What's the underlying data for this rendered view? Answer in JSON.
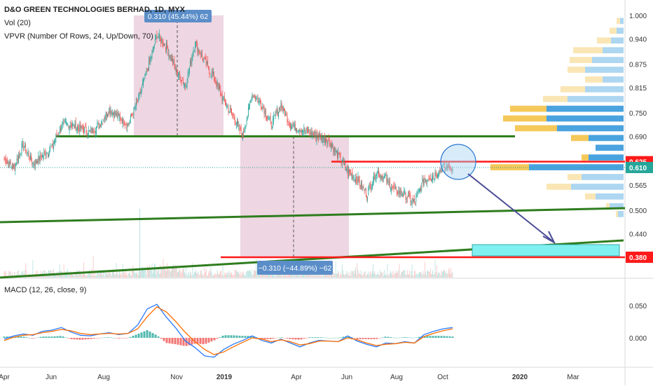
{
  "header": {
    "title": "D&O GREEN TECHNOLOGIES BERHAD, 1D, MYX",
    "line2": "Vol (20)",
    "line3": "VPVR (Number Of Rows, 24, Up/Down, 70)"
  },
  "macd_label": "MACD (12, 26, close, 9)",
  "annotations": {
    "range_up": "0.310 (45.44%) 62",
    "range_down": "−0.310 (−44.89%) −62"
  },
  "colors": {
    "up": "#26a69a",
    "down": "#ef5350",
    "trendline": "#2e7d1e",
    "hline": "#ff1a1a",
    "range_fill": "#e8c8d8",
    "target_box": "#80f0f0",
    "arrow": "#4b4c96",
    "vp_up": "#4aa3df",
    "vp_down": "#f5c85a",
    "macd_line": "#2979ff",
    "signal_line": "#ff6d00",
    "label_box": "#5b8ec9"
  },
  "chart_data": [
    {
      "type": "candlestick",
      "title": "D&O GREEN TECHNOLOGIES BERHAD, 1D, MYX",
      "x_ticks": [
        "Apr",
        "Jun",
        "Aug",
        "Nov",
        "2019",
        "Apr",
        "Jun",
        "Aug",
        "Oct",
        "2020",
        "Mar"
      ],
      "y_ticks": [
        "1.000",
        "0.940",
        "0.875",
        "0.815",
        "0.750",
        "0.690",
        "0.625",
        "0.565",
        "0.500",
        "0.440"
      ],
      "ylim": [
        0.38,
        1.0
      ],
      "price_tags": [
        {
          "value": "0.625",
          "color": "#ff1a1a"
        },
        {
          "value": "0.610",
          "color": "#26a69a"
        },
        {
          "value": "0.380",
          "color": "#ff1a1a"
        }
      ],
      "close_series": [
        0.63,
        0.61,
        0.67,
        0.62,
        0.64,
        0.66,
        0.72,
        0.72,
        0.71,
        0.7,
        0.72,
        0.76,
        0.74,
        0.72,
        0.78,
        0.86,
        0.95,
        0.92,
        0.86,
        0.82,
        0.93,
        0.88,
        0.84,
        0.78,
        0.74,
        0.69,
        0.8,
        0.77,
        0.72,
        0.77,
        0.72,
        0.71,
        0.7,
        0.69,
        0.68,
        0.64,
        0.6,
        0.58,
        0.54,
        0.6,
        0.58,
        0.55,
        0.54,
        0.52,
        0.58,
        0.59,
        0.61,
        0.61
      ],
      "volume_profile": [
        {
          "price": 0.985,
          "up": 5,
          "down": 5
        },
        {
          "price": 0.96,
          "up": 10,
          "down": 10
        },
        {
          "price": 0.935,
          "up": 18,
          "down": 20
        },
        {
          "price": 0.91,
          "up": 30,
          "down": 42
        },
        {
          "price": 0.885,
          "up": 45,
          "down": 32
        },
        {
          "price": 0.86,
          "up": 55,
          "down": 25
        },
        {
          "price": 0.835,
          "up": 30,
          "down": 25
        },
        {
          "price": 0.81,
          "up": 55,
          "down": 35
        },
        {
          "price": 0.785,
          "up": 80,
          "down": 35
        },
        {
          "price": 0.76,
          "up": 110,
          "down": 52
        },
        {
          "price": 0.735,
          "up": 110,
          "down": 62
        },
        {
          "price": 0.71,
          "up": 95,
          "down": 60
        },
        {
          "price": 0.685,
          "up": 50,
          "down": 25
        },
        {
          "price": 0.66,
          "up": 40,
          "down": 0
        },
        {
          "price": 0.635,
          "up": 50,
          "down": 10
        },
        {
          "price": 0.61,
          "up": 135,
          "down": 55
        },
        {
          "price": 0.585,
          "up": 60,
          "down": 20
        },
        {
          "price": 0.56,
          "up": 75,
          "down": 35
        },
        {
          "price": 0.535,
          "up": 40,
          "down": 15
        },
        {
          "price": 0.51,
          "up": 20,
          "down": 5
        },
        {
          "price": 0.49,
          "up": 8,
          "down": 3
        }
      ]
    },
    {
      "type": "line",
      "title": "MACD (12, 26, close, 9)",
      "y_ticks": [
        "0.050",
        "0.000"
      ],
      "ylim": [
        -0.045,
        0.07
      ],
      "series": [
        {
          "name": "MACD",
          "values": [
            -0.002,
            0.003,
            0.006,
            0.004,
            0.01,
            0.012,
            0.016,
            0.009,
            0.004,
            0.003,
            0.006,
            0.008,
            0.005,
            0.007,
            0.02,
            0.045,
            0.052,
            0.032,
            0.015,
            -0.005,
            -0.015,
            -0.028,
            -0.03,
            -0.018,
            -0.01,
            -0.004,
            0.003,
            -0.004,
            -0.008,
            -0.002,
            -0.008,
            -0.014,
            -0.008,
            -0.004,
            -0.005,
            -0.006,
            0.003,
            -0.005,
            -0.01,
            -0.014,
            -0.008,
            -0.009,
            -0.006,
            -0.008,
            0.005,
            0.01,
            0.014,
            0.016
          ]
        },
        {
          "name": "Signal",
          "values": [
            -0.004,
            0.001,
            0.004,
            0.005,
            0.008,
            0.01,
            0.013,
            0.011,
            0.007,
            0.005,
            0.006,
            0.007,
            0.006,
            0.007,
            0.014,
            0.033,
            0.048,
            0.04,
            0.025,
            0.008,
            -0.006,
            -0.018,
            -0.026,
            -0.022,
            -0.014,
            -0.007,
            0.0,
            -0.002,
            -0.006,
            -0.003,
            -0.006,
            -0.011,
            -0.009,
            -0.005,
            -0.005,
            -0.006,
            0.0,
            -0.003,
            -0.008,
            -0.012,
            -0.01,
            -0.009,
            -0.007,
            -0.008,
            0.002,
            0.007,
            0.011,
            0.014
          ]
        }
      ]
    }
  ]
}
